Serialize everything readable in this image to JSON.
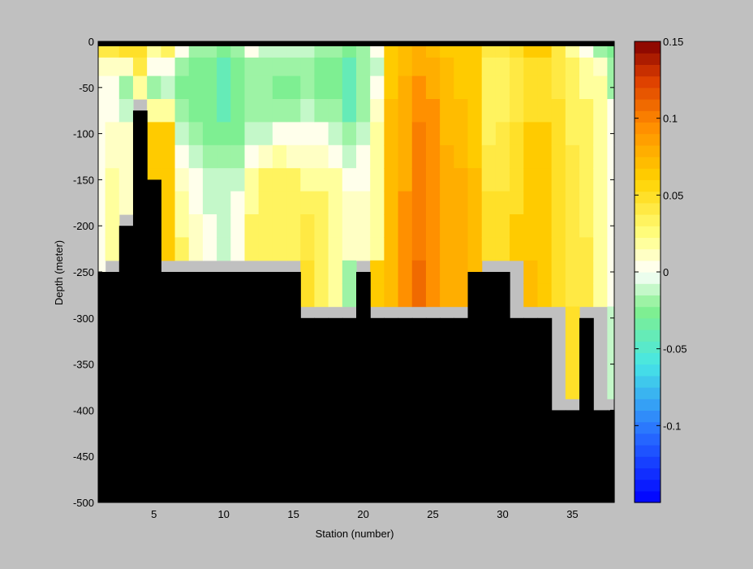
{
  "chart_data": {
    "type": "heatmap",
    "title": "",
    "xlabel": "Station (number)",
    "ylabel": "Depth (meter)",
    "xlim": [
      1,
      38
    ],
    "ylim": [
      -500,
      0
    ],
    "xticks": [
      5,
      10,
      15,
      20,
      25,
      30,
      35
    ],
    "xtick_labels": [
      "5",
      "10",
      "15",
      "20",
      "25",
      "30",
      "35"
    ],
    "yticks": [
      0,
      -50,
      -100,
      -150,
      -200,
      -250,
      -300,
      -350,
      -400,
      -450,
      -500
    ],
    "ytick_labels": [
      "0",
      "-50",
      "-100",
      "-150",
      "-200",
      "-250",
      "-300",
      "-350",
      "-400",
      "-450",
      "-500"
    ],
    "depth_bins": [
      -10,
      -25,
      -50,
      -75,
      -100,
      -125,
      -150,
      -175,
      -200,
      -225,
      -250,
      -275,
      -300,
      -325,
      -350,
      -375,
      -400
    ],
    "stations": [
      1,
      2,
      3,
      4,
      5,
      6,
      7,
      8,
      9,
      10,
      11,
      12,
      13,
      14,
      15,
      16,
      17,
      18,
      19,
      20,
      21,
      22,
      23,
      24,
      25,
      26,
      27,
      28,
      29,
      30,
      31,
      32,
      33,
      34,
      35,
      36,
      37,
      38
    ],
    "bottom_depth": [
      -250,
      -250,
      -200,
      -75,
      -150,
      -250,
      -250,
      -250,
      -250,
      -250,
      -250,
      -250,
      -250,
      -250,
      -250,
      -300,
      -300,
      -300,
      -300,
      -250,
      -300,
      -300,
      -300,
      -300,
      -300,
      -300,
      -300,
      -250,
      -250,
      -250,
      -300,
      -300,
      -300,
      -400,
      -400,
      -300,
      -400,
      -400
    ],
    "values": [
      [
        0.04,
        0.01,
        0.0,
        0.0,
        0.0,
        0.0,
        0.0,
        0.0,
        0.0,
        0.0,
        0.0,
        0.0,
        0.0,
        0.0,
        0.0,
        null,
        null
      ],
      [
        0.04,
        0.01,
        0.0,
        0.0,
        0.01,
        0.01,
        0.02,
        0.02,
        0.02,
        0.02,
        null,
        null,
        null,
        null,
        null,
        null,
        null
      ],
      [
        0.05,
        0.01,
        -0.02,
        -0.01,
        0.01,
        0.01,
        0.01,
        0.01,
        null,
        null,
        null,
        null,
        null,
        null,
        null,
        null,
        null
      ],
      [
        0.05,
        0.04,
        0.02,
        null,
        null,
        null,
        null,
        null,
        null,
        null,
        null,
        null,
        null,
        null,
        null,
        null,
        null
      ],
      [
        0.02,
        0.0,
        -0.02,
        0.02,
        0.06,
        0.06,
        0.06,
        null,
        null,
        null,
        null,
        null,
        null,
        null,
        null,
        null,
        null
      ],
      [
        0.03,
        0.0,
        -0.01,
        0.02,
        0.06,
        0.06,
        0.06,
        0.06,
        0.06,
        0.06,
        null,
        null,
        null,
        null,
        null,
        null,
        null
      ],
      [
        0.0,
        -0.02,
        -0.03,
        -0.02,
        -0.01,
        0.0,
        0.01,
        0.02,
        0.02,
        0.03,
        null,
        null,
        null,
        null,
        null,
        null,
        null
      ],
      [
        -0.02,
        -0.03,
        -0.03,
        -0.03,
        -0.02,
        -0.01,
        0.0,
        0.0,
        0.01,
        0.01,
        null,
        null,
        null,
        null,
        null,
        null,
        null
      ],
      [
        -0.02,
        -0.03,
        -0.03,
        -0.03,
        -0.03,
        -0.02,
        -0.01,
        -0.01,
        0.0,
        0.0,
        null,
        null,
        null,
        null,
        null,
        null,
        null
      ],
      [
        -0.03,
        -0.04,
        -0.04,
        -0.04,
        -0.03,
        -0.02,
        -0.01,
        -0.01,
        -0.01,
        -0.01,
        null,
        null,
        null,
        null,
        null,
        null,
        null
      ],
      [
        -0.02,
        -0.03,
        -0.03,
        -0.03,
        -0.03,
        -0.02,
        -0.01,
        0.0,
        0.0,
        0.0,
        null,
        null,
        null,
        null,
        null,
        null,
        null
      ],
      [
        0.0,
        -0.02,
        -0.02,
        -0.02,
        -0.01,
        0.0,
        0.02,
        0.02,
        0.03,
        0.03,
        null,
        null,
        null,
        null,
        null,
        null,
        null
      ],
      [
        -0.01,
        -0.02,
        -0.02,
        -0.02,
        -0.01,
        0.01,
        0.03,
        0.03,
        0.03,
        0.03,
        null,
        null,
        null,
        null,
        null,
        null,
        null
      ],
      [
        -0.01,
        -0.02,
        -0.03,
        -0.02,
        0.0,
        0.02,
        0.03,
        0.03,
        0.03,
        0.03,
        null,
        null,
        null,
        null,
        null,
        null,
        null
      ],
      [
        -0.01,
        -0.02,
        -0.03,
        -0.02,
        0.0,
        0.01,
        0.03,
        0.03,
        0.03,
        0.03,
        null,
        null,
        null,
        null,
        null,
        null,
        null
      ],
      [
        -0.01,
        -0.02,
        -0.02,
        -0.01,
        0.0,
        0.01,
        0.02,
        0.03,
        0.04,
        0.04,
        0.05,
        0.05,
        null,
        null,
        null,
        null,
        null
      ],
      [
        -0.02,
        -0.03,
        -0.03,
        -0.02,
        0.0,
        0.01,
        0.02,
        0.03,
        0.03,
        0.03,
        0.03,
        0.03,
        null,
        null,
        null,
        null,
        null
      ],
      [
        -0.02,
        -0.03,
        -0.03,
        -0.02,
        -0.01,
        0.0,
        0.02,
        0.02,
        0.02,
        0.02,
        0.02,
        0.02,
        null,
        null,
        null,
        null,
        null
      ],
      [
        -0.03,
        -0.04,
        -0.04,
        -0.04,
        -0.02,
        -0.01,
        0.0,
        0.01,
        0.01,
        0.01,
        -0.02,
        -0.02,
        null,
        null,
        null,
        null,
        null
      ],
      [
        -0.02,
        -0.02,
        -0.02,
        -0.02,
        -0.01,
        0.0,
        0.0,
        0.01,
        0.01,
        0.01,
        null,
        null,
        null,
        null,
        null,
        null,
        null
      ],
      [
        0.0,
        -0.01,
        0.0,
        0.01,
        0.02,
        0.02,
        0.02,
        0.02,
        0.02,
        0.02,
        0.06,
        0.06,
        null,
        null,
        null,
        null,
        null
      ],
      [
        0.06,
        0.06,
        0.06,
        0.07,
        0.07,
        0.07,
        0.07,
        0.07,
        0.07,
        0.07,
        0.07,
        0.07,
        null,
        null,
        null,
        null,
        null
      ],
      [
        0.07,
        0.07,
        0.08,
        0.08,
        0.08,
        0.08,
        0.08,
        0.09,
        0.09,
        0.09,
        0.09,
        0.09,
        null,
        null,
        null,
        null,
        null
      ],
      [
        0.08,
        0.08,
        0.09,
        0.09,
        0.1,
        0.1,
        0.1,
        0.1,
        0.1,
        0.1,
        0.11,
        0.11,
        null,
        null,
        null,
        null,
        null
      ],
      [
        0.07,
        0.08,
        0.08,
        0.09,
        0.09,
        0.09,
        0.09,
        0.09,
        0.09,
        0.09,
        0.09,
        0.09,
        null,
        null,
        null,
        null,
        null
      ],
      [
        0.06,
        0.07,
        0.07,
        0.07,
        0.07,
        0.08,
        0.08,
        0.08,
        0.08,
        0.08,
        0.08,
        0.08,
        null,
        null,
        null,
        null,
        null
      ],
      [
        0.06,
        0.06,
        0.06,
        0.07,
        0.07,
        0.07,
        0.08,
        0.08,
        0.08,
        0.08,
        0.08,
        0.08,
        null,
        null,
        null,
        null,
        null
      ],
      [
        0.06,
        0.06,
        0.06,
        0.06,
        0.06,
        0.06,
        0.07,
        0.07,
        0.07,
        0.07,
        0.07,
        0.07,
        null,
        null,
        null,
        null,
        null
      ],
      [
        0.04,
        0.03,
        0.03,
        0.03,
        0.03,
        0.04,
        0.04,
        0.05,
        0.05,
        0.05,
        null,
        null,
        null,
        null,
        null,
        null,
        null
      ],
      [
        0.04,
        0.03,
        0.03,
        0.03,
        0.04,
        0.04,
        0.04,
        0.05,
        0.05,
        0.05,
        null,
        null,
        null,
        null,
        null,
        null,
        null
      ],
      [
        0.05,
        0.04,
        0.04,
        0.04,
        0.05,
        0.05,
        0.05,
        0.05,
        0.06,
        0.06,
        null,
        null,
        null,
        null,
        null,
        null,
        null
      ],
      [
        0.06,
        0.05,
        0.05,
        0.05,
        0.06,
        0.06,
        0.06,
        0.06,
        0.06,
        0.06,
        0.07,
        0.07,
        null,
        null,
        null,
        null,
        null
      ],
      [
        0.06,
        0.05,
        0.05,
        0.05,
        0.06,
        0.06,
        0.06,
        0.06,
        0.06,
        0.06,
        0.06,
        0.06,
        null,
        null,
        null,
        null,
        null
      ],
      [
        0.04,
        0.04,
        0.04,
        0.05,
        0.05,
        0.05,
        0.05,
        0.05,
        0.05,
        0.05,
        0.05,
        0.05,
        null,
        null,
        null,
        null,
        null
      ],
      [
        0.02,
        0.03,
        0.03,
        0.03,
        0.03,
        0.04,
        0.04,
        0.04,
        0.04,
        0.04,
        0.04,
        0.04,
        0.05,
        0.05,
        0.05,
        0.05,
        null
      ],
      [
        0.0,
        0.02,
        0.02,
        0.03,
        0.03,
        0.03,
        0.03,
        0.03,
        0.03,
        0.04,
        0.04,
        0.04,
        null,
        null,
        null,
        null,
        null
      ],
      [
        -0.02,
        0.01,
        0.02,
        0.02,
        0.02,
        0.02,
        0.02,
        0.02,
        0.02,
        0.02,
        0.02,
        0.02,
        null,
        null,
        null,
        null,
        null
      ],
      [
        -0.03,
        -0.02,
        -0.02,
        0.0,
        0.0,
        0.0,
        0.0,
        0.0,
        0.0,
        0.0,
        0.0,
        0.0,
        -0.01,
        -0.01,
        -0.01,
        -0.01,
        null
      ]
    ],
    "colorbar": {
      "clim": [
        -0.15,
        0.15
      ],
      "ticks": [
        0.15,
        0.1,
        0.05,
        0,
        -0.05,
        -0.1
      ],
      "tick_labels": [
        "0.15",
        "0.1",
        "0.05",
        "0",
        "-0.05",
        "-0.1"
      ],
      "colormap": "jet-white",
      "levels": 40
    },
    "land_color": "#000000",
    "colors": {
      "background": "#c0c0c0",
      "land": "#000000"
    }
  }
}
